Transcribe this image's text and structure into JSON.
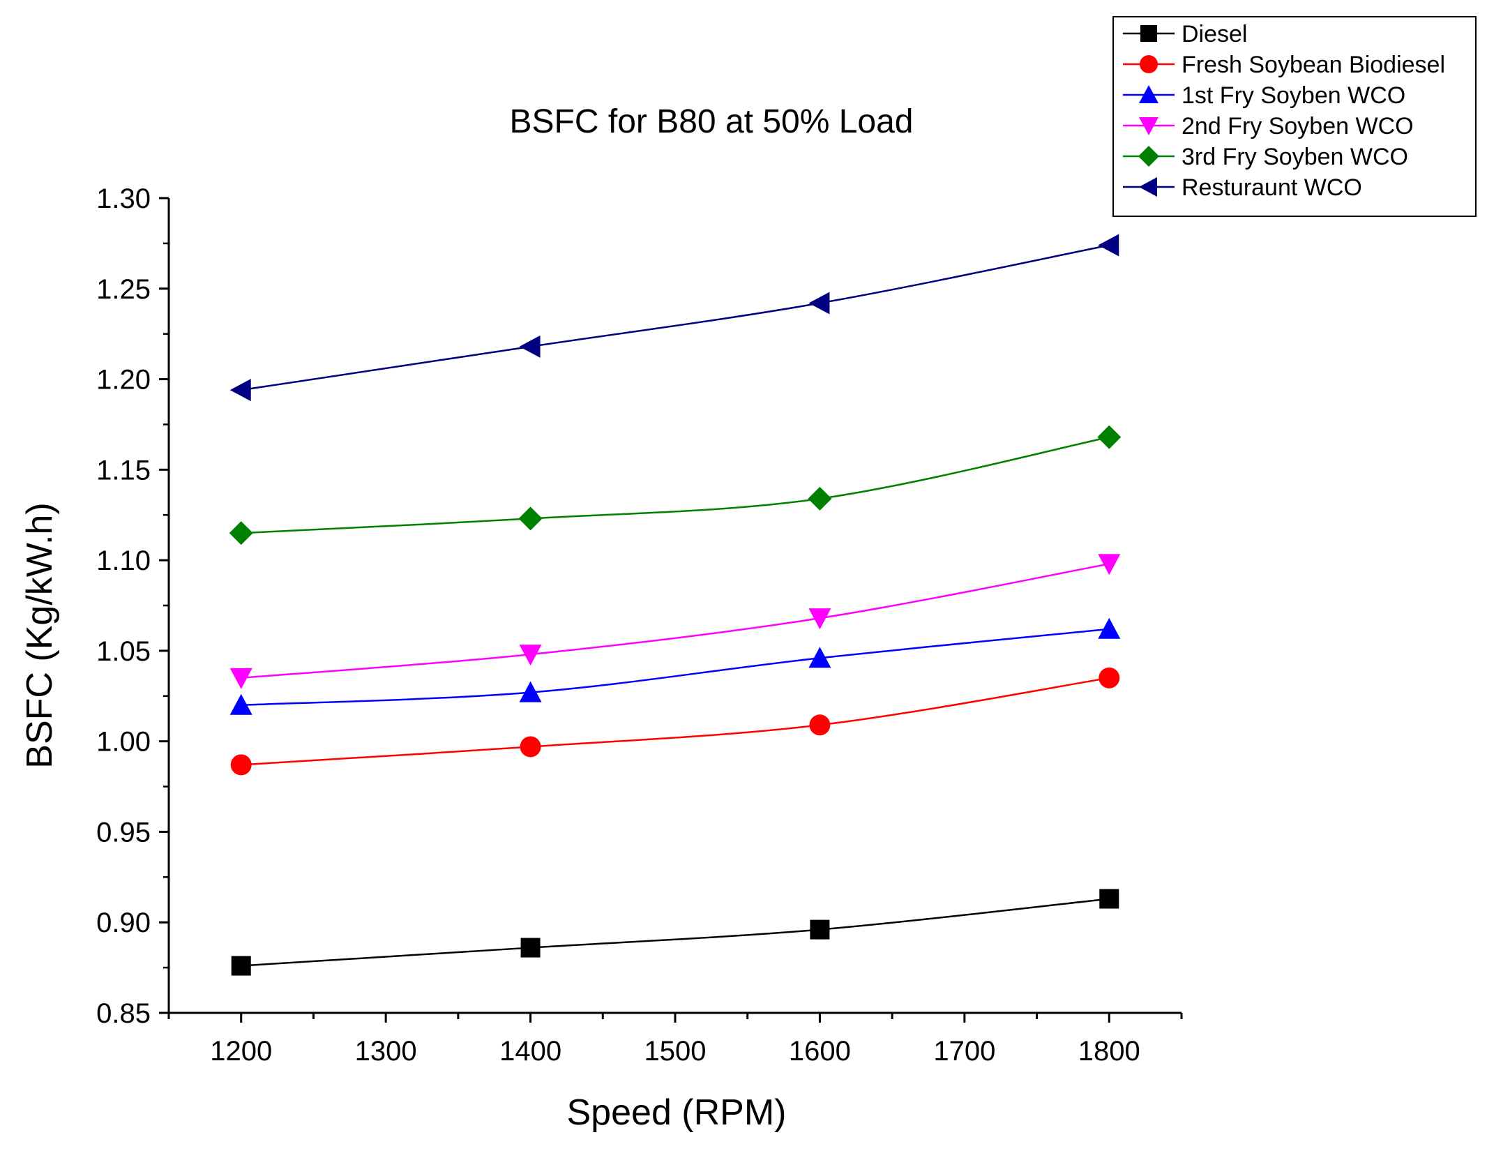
{
  "chart_data": {
    "type": "line",
    "title": "BSFC for B80 at 50% Load",
    "xlabel": "Speed (RPM)",
    "ylabel": "BSFC (Kg/kW.h)",
    "xlim": [
      1150,
      1850
    ],
    "ylim": [
      0.85,
      1.3
    ],
    "x_ticks": [
      1200,
      1300,
      1400,
      1500,
      1600,
      1700,
      1800
    ],
    "x_tick_labels": [
      "1200",
      "1300",
      "1400",
      "1500",
      "1600",
      "1700",
      "1800"
    ],
    "y_ticks": [
      0.85,
      0.9,
      0.95,
      1.0,
      1.05,
      1.1,
      1.15,
      1.2,
      1.25,
      1.3
    ],
    "y_tick_labels": [
      "0.85",
      "0.90",
      "0.95",
      "1.00",
      "1.05",
      "1.10",
      "1.15",
      "1.20",
      "1.25",
      "1.30"
    ],
    "grid": false,
    "legend_position": "top-right",
    "x": [
      1200,
      1400,
      1600,
      1800
    ],
    "series": [
      {
        "name": "Diesel",
        "color": "#000000",
        "marker": "square",
        "values": [
          0.876,
          0.886,
          0.896,
          0.913
        ]
      },
      {
        "name": "Fresh Soybean Biodiesel",
        "color": "#ff0000",
        "marker": "circle",
        "values": [
          0.987,
          0.997,
          1.009,
          1.035
        ]
      },
      {
        "name": "1st Fry Soyben WCO",
        "color": "#0000ff",
        "marker": "triangle-up",
        "values": [
          1.02,
          1.027,
          1.046,
          1.062
        ]
      },
      {
        "name": "2nd Fry Soyben WCO",
        "color": "#ff00ff",
        "marker": "triangle-down",
        "values": [
          1.035,
          1.048,
          1.068,
          1.098
        ]
      },
      {
        "name": "3rd Fry Soyben WCO",
        "color": "#008000",
        "marker": "diamond",
        "values": [
          1.115,
          1.123,
          1.134,
          1.168
        ]
      },
      {
        "name": "Resturaunt WCO",
        "color": "#000080",
        "marker": "triangle-left",
        "values": [
          1.194,
          1.218,
          1.242,
          1.274
        ]
      }
    ]
  }
}
